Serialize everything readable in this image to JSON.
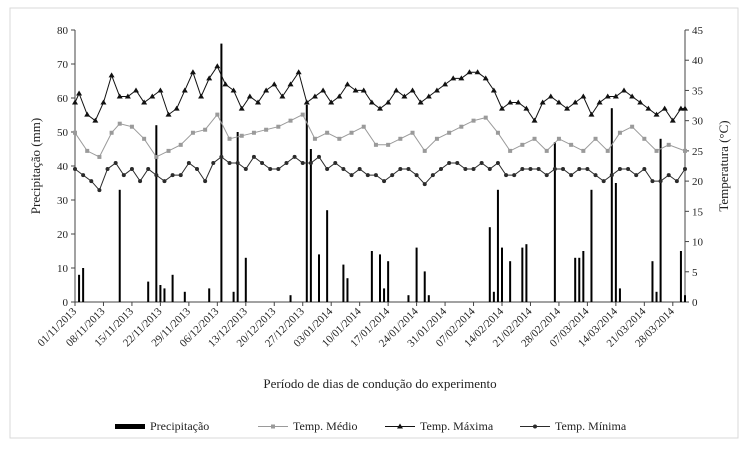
{
  "chart_data": {
    "type": "line",
    "xlabel": "Período de dias de condução do experimento",
    "ylabel_left": "Precipitação (mm)",
    "ylabel_right": "Temperatura (°C)",
    "ylim_left": [
      0,
      80
    ],
    "yticks_left": [
      0,
      10,
      20,
      30,
      40,
      50,
      60,
      70,
      80
    ],
    "ylim_right": [
      0,
      45
    ],
    "yticks_right": [
      0,
      5,
      10,
      15,
      20,
      25,
      30,
      35,
      40,
      45
    ],
    "date_ticks": [
      "01/11/2013",
      "08/11/2013",
      "15/11/2013",
      "22/11/2013",
      "29/11/2013",
      "06/12/2013",
      "13/12/2013",
      "20/12/2013",
      "27/12/2013",
      "03/01/2014",
      "10/01/2014",
      "17/01/2014",
      "24/01/2014",
      "31/01/2014",
      "07/02/2014",
      "14/02/2014",
      "21/02/2014",
      "28/02/2014",
      "07/03/2014",
      "14/03/2014",
      "21/03/2014",
      "28/03/2014"
    ],
    "start_date": "01/11/2013",
    "end_date": "31/03/2014",
    "legend_position": "bottom",
    "grid": false,
    "series": [
      {
        "name": "Precipitação",
        "type": "bar",
        "axis": "left",
        "color": "#000000",
        "points": [
          [
            "02/11/2013",
            8
          ],
          [
            "03/11/2013",
            10
          ],
          [
            "12/11/2013",
            33
          ],
          [
            "19/11/2013",
            6
          ],
          [
            "21/11/2013",
            52
          ],
          [
            "22/11/2013",
            5
          ],
          [
            "23/11/2013",
            4
          ],
          [
            "25/11/2013",
            8
          ],
          [
            "28/11/2013",
            3
          ],
          [
            "04/12/2013",
            4
          ],
          [
            "07/12/2013",
            76
          ],
          [
            "10/12/2013",
            3
          ],
          [
            "11/12/2013",
            50
          ],
          [
            "13/12/2013",
            13
          ],
          [
            "24/12/2013",
            2
          ],
          [
            "28/12/2013",
            58
          ],
          [
            "29/12/2013",
            45
          ],
          [
            "31/12/2013",
            14
          ],
          [
            "02/01/2014",
            27
          ],
          [
            "06/01/2014",
            11
          ],
          [
            "07/01/2014",
            7
          ],
          [
            "13/01/2014",
            15
          ],
          [
            "15/01/2014",
            14
          ],
          [
            "16/01/2014",
            4
          ],
          [
            "17/01/2014",
            12
          ],
          [
            "22/01/2014",
            2
          ],
          [
            "24/01/2014",
            16
          ],
          [
            "26/01/2014",
            9
          ],
          [
            "27/01/2014",
            2
          ],
          [
            "11/02/2014",
            22
          ],
          [
            "12/02/2014",
            3
          ],
          [
            "13/02/2014",
            33
          ],
          [
            "14/02/2014",
            16
          ],
          [
            "16/02/2014",
            12
          ],
          [
            "19/02/2014",
            16
          ],
          [
            "20/02/2014",
            17
          ],
          [
            "27/02/2014",
            47
          ],
          [
            "04/03/2014",
            13
          ],
          [
            "05/03/2014",
            13
          ],
          [
            "06/03/2014",
            15
          ],
          [
            "08/03/2014",
            33
          ],
          [
            "13/03/2014",
            57
          ],
          [
            "14/03/2014",
            35
          ],
          [
            "15/03/2014",
            4
          ],
          [
            "23/03/2014",
            12
          ],
          [
            "24/03/2014",
            3
          ],
          [
            "25/03/2014",
            48
          ],
          [
            "30/03/2014",
            15
          ],
          [
            "31/03/2014",
            2
          ]
        ]
      },
      {
        "name": "Temp. Médio",
        "type": "line",
        "axis": "right",
        "color": "#9a9a9a",
        "marker": "square",
        "points": [
          [
            "01/11/2013",
            28
          ],
          [
            "04/11/2013",
            25
          ],
          [
            "07/11/2013",
            24
          ],
          [
            "10/11/2013",
            28
          ],
          [
            "12/11/2013",
            29.5
          ],
          [
            "15/11/2013",
            29
          ],
          [
            "18/11/2013",
            27
          ],
          [
            "21/11/2013",
            24
          ],
          [
            "24/11/2013",
            25
          ],
          [
            "27/11/2013",
            26
          ],
          [
            "30/11/2013",
            28
          ],
          [
            "03/12/2013",
            28.5
          ],
          [
            "06/12/2013",
            31
          ],
          [
            "09/12/2013",
            27
          ],
          [
            "12/12/2013",
            27.5
          ],
          [
            "15/12/2013",
            28
          ],
          [
            "18/12/2013",
            28.5
          ],
          [
            "21/12/2013",
            29
          ],
          [
            "24/12/2013",
            30
          ],
          [
            "27/12/2013",
            31
          ],
          [
            "30/12/2013",
            27
          ],
          [
            "02/01/2014",
            28
          ],
          [
            "05/01/2014",
            27
          ],
          [
            "08/01/2014",
            28
          ],
          [
            "11/01/2014",
            29
          ],
          [
            "14/01/2014",
            26
          ],
          [
            "17/01/2014",
            26
          ],
          [
            "20/01/2014",
            27
          ],
          [
            "23/01/2014",
            28
          ],
          [
            "26/01/2014",
            25
          ],
          [
            "29/01/2014",
            27
          ],
          [
            "01/02/2014",
            28
          ],
          [
            "04/02/2014",
            29
          ],
          [
            "07/02/2014",
            30
          ],
          [
            "10/02/2014",
            30.5
          ],
          [
            "13/02/2014",
            28
          ],
          [
            "16/02/2014",
            25
          ],
          [
            "19/02/2014",
            26
          ],
          [
            "22/02/2014",
            27
          ],
          [
            "25/02/2014",
            25
          ],
          [
            "28/02/2014",
            27
          ],
          [
            "03/03/2014",
            26
          ],
          [
            "06/03/2014",
            25
          ],
          [
            "09/03/2014",
            27
          ],
          [
            "12/03/2014",
            25
          ],
          [
            "15/03/2014",
            28
          ],
          [
            "18/03/2014",
            29
          ],
          [
            "21/03/2014",
            27
          ],
          [
            "24/03/2014",
            25
          ],
          [
            "27/03/2014",
            26
          ],
          [
            "31/03/2014",
            25
          ]
        ]
      },
      {
        "name": "Temp. Máxima",
        "type": "line",
        "axis": "right",
        "color": "#111111",
        "marker": "triangle",
        "points": [
          [
            "01/11/2013",
            33
          ],
          [
            "02/11/2013",
            34.5
          ],
          [
            "04/11/2013",
            31
          ],
          [
            "06/11/2013",
            30
          ],
          [
            "08/11/2013",
            33
          ],
          [
            "10/11/2013",
            37.5
          ],
          [
            "12/11/2013",
            34
          ],
          [
            "14/11/2013",
            34
          ],
          [
            "16/11/2013",
            35
          ],
          [
            "18/11/2013",
            33
          ],
          [
            "20/11/2013",
            34
          ],
          [
            "22/11/2013",
            35
          ],
          [
            "24/11/2013",
            31
          ],
          [
            "26/11/2013",
            32
          ],
          [
            "28/11/2013",
            35
          ],
          [
            "30/11/2013",
            38
          ],
          [
            "02/12/2013",
            34
          ],
          [
            "04/12/2013",
            37
          ],
          [
            "06/12/2013",
            39
          ],
          [
            "08/12/2013",
            36
          ],
          [
            "10/12/2013",
            35
          ],
          [
            "12/12/2013",
            32
          ],
          [
            "14/12/2013",
            34
          ],
          [
            "16/12/2013",
            33
          ],
          [
            "18/12/2013",
            35
          ],
          [
            "20/12/2013",
            36
          ],
          [
            "22/12/2013",
            34
          ],
          [
            "24/12/2013",
            36
          ],
          [
            "26/12/2013",
            38
          ],
          [
            "28/12/2013",
            33
          ],
          [
            "30/12/2013",
            34
          ],
          [
            "01/01/2014",
            35
          ],
          [
            "03/01/2014",
            33
          ],
          [
            "05/01/2014",
            34
          ],
          [
            "07/01/2014",
            36
          ],
          [
            "09/01/2014",
            35
          ],
          [
            "11/01/2014",
            35
          ],
          [
            "13/01/2014",
            33
          ],
          [
            "15/01/2014",
            32
          ],
          [
            "17/01/2014",
            33
          ],
          [
            "19/01/2014",
            35
          ],
          [
            "21/01/2014",
            34
          ],
          [
            "23/01/2014",
            35
          ],
          [
            "25/01/2014",
            33
          ],
          [
            "27/01/2014",
            34
          ],
          [
            "29/01/2014",
            35
          ],
          [
            "31/01/2014",
            36
          ],
          [
            "02/02/2014",
            37
          ],
          [
            "04/02/2014",
            37
          ],
          [
            "06/02/2014",
            38
          ],
          [
            "08/02/2014",
            38
          ],
          [
            "10/02/2014",
            37
          ],
          [
            "12/02/2014",
            35
          ],
          [
            "14/02/2014",
            32
          ],
          [
            "16/02/2014",
            33
          ],
          [
            "18/02/2014",
            33
          ],
          [
            "20/02/2014",
            32
          ],
          [
            "22/02/2014",
            30
          ],
          [
            "24/02/2014",
            33
          ],
          [
            "26/02/2014",
            34
          ],
          [
            "28/02/2014",
            33
          ],
          [
            "02/03/2014",
            32
          ],
          [
            "04/03/2014",
            33
          ],
          [
            "06/03/2014",
            34
          ],
          [
            "08/03/2014",
            31
          ],
          [
            "10/03/2014",
            33
          ],
          [
            "12/03/2014",
            34
          ],
          [
            "14/03/2014",
            34
          ],
          [
            "16/03/2014",
            35
          ],
          [
            "18/03/2014",
            34
          ],
          [
            "20/03/2014",
            33
          ],
          [
            "22/03/2014",
            32
          ],
          [
            "24/03/2014",
            31
          ],
          [
            "26/03/2014",
            32
          ],
          [
            "28/03/2014",
            30
          ],
          [
            "30/03/2014",
            32
          ],
          [
            "31/03/2014",
            32
          ]
        ]
      },
      {
        "name": "Temp. Mínima",
        "type": "line",
        "axis": "right",
        "color": "#2b2b2b",
        "marker": "circle",
        "points": [
          [
            "01/11/2013",
            22
          ],
          [
            "03/11/2013",
            21
          ],
          [
            "05/11/2013",
            20
          ],
          [
            "07/11/2013",
            18.5
          ],
          [
            "09/11/2013",
            22
          ],
          [
            "11/11/2013",
            23
          ],
          [
            "13/11/2013",
            21
          ],
          [
            "15/11/2013",
            22
          ],
          [
            "17/11/2013",
            20
          ],
          [
            "19/11/2013",
            22
          ],
          [
            "21/11/2013",
            21
          ],
          [
            "23/11/2013",
            20
          ],
          [
            "25/11/2013",
            21
          ],
          [
            "27/11/2013",
            21
          ],
          [
            "29/11/2013",
            23
          ],
          [
            "01/12/2013",
            22
          ],
          [
            "03/12/2013",
            20
          ],
          [
            "05/12/2013",
            23
          ],
          [
            "07/12/2013",
            24
          ],
          [
            "09/12/2013",
            23
          ],
          [
            "11/12/2013",
            23
          ],
          [
            "13/12/2013",
            22
          ],
          [
            "15/12/2013",
            24
          ],
          [
            "17/12/2013",
            23
          ],
          [
            "19/12/2013",
            22
          ],
          [
            "21/12/2013",
            22
          ],
          [
            "23/12/2013",
            23
          ],
          [
            "25/12/2013",
            24
          ],
          [
            "27/12/2013",
            23
          ],
          [
            "29/12/2013",
            23
          ],
          [
            "31/12/2013",
            24
          ],
          [
            "02/01/2014",
            22
          ],
          [
            "04/01/2014",
            23
          ],
          [
            "06/01/2014",
            22
          ],
          [
            "08/01/2014",
            21
          ],
          [
            "10/01/2014",
            22
          ],
          [
            "12/01/2014",
            21
          ],
          [
            "14/01/2014",
            21
          ],
          [
            "16/01/2014",
            20
          ],
          [
            "18/01/2014",
            21
          ],
          [
            "20/01/2014",
            22
          ],
          [
            "22/01/2014",
            22
          ],
          [
            "24/01/2014",
            21
          ],
          [
            "26/01/2014",
            19.5
          ],
          [
            "28/01/2014",
            21
          ],
          [
            "30/01/2014",
            22
          ],
          [
            "01/02/2014",
            23
          ],
          [
            "03/02/2014",
            23
          ],
          [
            "05/02/2014",
            22
          ],
          [
            "07/02/2014",
            22
          ],
          [
            "09/02/2014",
            23
          ],
          [
            "11/02/2014",
            22
          ],
          [
            "13/02/2014",
            23
          ],
          [
            "15/02/2014",
            21
          ],
          [
            "17/02/2014",
            21
          ],
          [
            "19/02/2014",
            22
          ],
          [
            "21/02/2014",
            22
          ],
          [
            "23/02/2014",
            22
          ],
          [
            "25/02/2014",
            21
          ],
          [
            "27/02/2014",
            22
          ],
          [
            "01/03/2014",
            22
          ],
          [
            "03/03/2014",
            21
          ],
          [
            "05/03/2014",
            22
          ],
          [
            "07/03/2014",
            22
          ],
          [
            "09/03/2014",
            21
          ],
          [
            "11/03/2014",
            20
          ],
          [
            "13/03/2014",
            21
          ],
          [
            "15/03/2014",
            22
          ],
          [
            "17/03/2014",
            22
          ],
          [
            "19/03/2014",
            21
          ],
          [
            "21/03/2014",
            22
          ],
          [
            "23/03/2014",
            20
          ],
          [
            "25/03/2014",
            20
          ],
          [
            "27/03/2014",
            21
          ],
          [
            "29/03/2014",
            20
          ],
          [
            "31/03/2014",
            22
          ]
        ]
      }
    ]
  }
}
